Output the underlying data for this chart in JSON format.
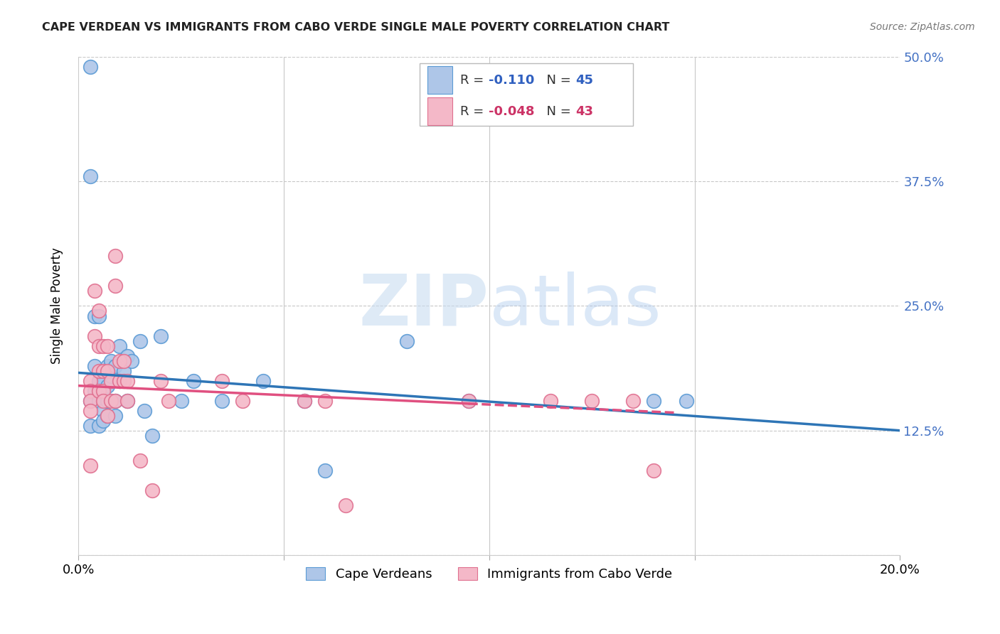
{
  "title": "CAPE VERDEAN VS IMMIGRANTS FROM CABO VERDE SINGLE MALE POVERTY CORRELATION CHART",
  "source": "Source: ZipAtlas.com",
  "ylabel": "Single Male Poverty",
  "y_ticks": [
    0.0,
    0.125,
    0.25,
    0.375,
    0.5
  ],
  "y_tick_labels": [
    "",
    "12.5%",
    "25.0%",
    "37.5%",
    "50.0%"
  ],
  "xlim": [
    0.0,
    0.2
  ],
  "ylim": [
    0.0,
    0.5
  ],
  "legend_label1": "Cape Verdeans",
  "legend_label2": "Immigrants from Cabo Verde",
  "blue_color": "#aec6e8",
  "blue_edge_color": "#5b9bd5",
  "pink_color": "#f4b8c8",
  "pink_edge_color": "#e07090",
  "blue_line_color": "#2e75b6",
  "pink_line_color": "#e05080",
  "background_color": "#ffffff",
  "grid_color": "#c8c8c8",
  "watermark_color": "#ddeeff",
  "blue_points_x": [
    0.003,
    0.003,
    0.003,
    0.003,
    0.004,
    0.004,
    0.004,
    0.005,
    0.005,
    0.005,
    0.005,
    0.006,
    0.006,
    0.006,
    0.006,
    0.007,
    0.007,
    0.007,
    0.007,
    0.008,
    0.008,
    0.008,
    0.009,
    0.009,
    0.009,
    0.01,
    0.01,
    0.011,
    0.012,
    0.012,
    0.013,
    0.015,
    0.016,
    0.018,
    0.02,
    0.025,
    0.028,
    0.035,
    0.045,
    0.055,
    0.06,
    0.08,
    0.095,
    0.14,
    0.148
  ],
  "blue_points_y": [
    0.49,
    0.38,
    0.155,
    0.13,
    0.24,
    0.19,
    0.165,
    0.24,
    0.175,
    0.155,
    0.13,
    0.175,
    0.155,
    0.145,
    0.135,
    0.19,
    0.17,
    0.155,
    0.14,
    0.195,
    0.18,
    0.155,
    0.19,
    0.155,
    0.14,
    0.21,
    0.175,
    0.185,
    0.2,
    0.155,
    0.195,
    0.215,
    0.145,
    0.12,
    0.22,
    0.155,
    0.175,
    0.155,
    0.175,
    0.155,
    0.085,
    0.215,
    0.155,
    0.155,
    0.155
  ],
  "pink_points_x": [
    0.003,
    0.003,
    0.003,
    0.003,
    0.003,
    0.004,
    0.004,
    0.005,
    0.005,
    0.005,
    0.005,
    0.006,
    0.006,
    0.006,
    0.006,
    0.007,
    0.007,
    0.007,
    0.008,
    0.008,
    0.009,
    0.009,
    0.009,
    0.01,
    0.01,
    0.011,
    0.011,
    0.012,
    0.012,
    0.015,
    0.018,
    0.02,
    0.022,
    0.035,
    0.04,
    0.055,
    0.06,
    0.065,
    0.095,
    0.115,
    0.125,
    0.135,
    0.14
  ],
  "pink_points_y": [
    0.175,
    0.165,
    0.155,
    0.145,
    0.09,
    0.265,
    0.22,
    0.245,
    0.21,
    0.185,
    0.165,
    0.21,
    0.185,
    0.165,
    0.155,
    0.21,
    0.185,
    0.14,
    0.175,
    0.155,
    0.3,
    0.27,
    0.155,
    0.195,
    0.175,
    0.195,
    0.175,
    0.175,
    0.155,
    0.095,
    0.065,
    0.175,
    0.155,
    0.175,
    0.155,
    0.155,
    0.155,
    0.05,
    0.155,
    0.155,
    0.155,
    0.155,
    0.085
  ],
  "blue_line_x0": 0.0,
  "blue_line_x1": 0.2,
  "blue_line_y0": 0.183,
  "blue_line_y1": 0.125,
  "pink_line_solid_x0": 0.0,
  "pink_line_solid_x1": 0.095,
  "pink_line_solid_y0": 0.17,
  "pink_line_solid_y1": 0.152,
  "pink_line_dash_x0": 0.095,
  "pink_line_dash_x1": 0.145,
  "pink_line_dash_y0": 0.152,
  "pink_line_dash_y1": 0.143
}
